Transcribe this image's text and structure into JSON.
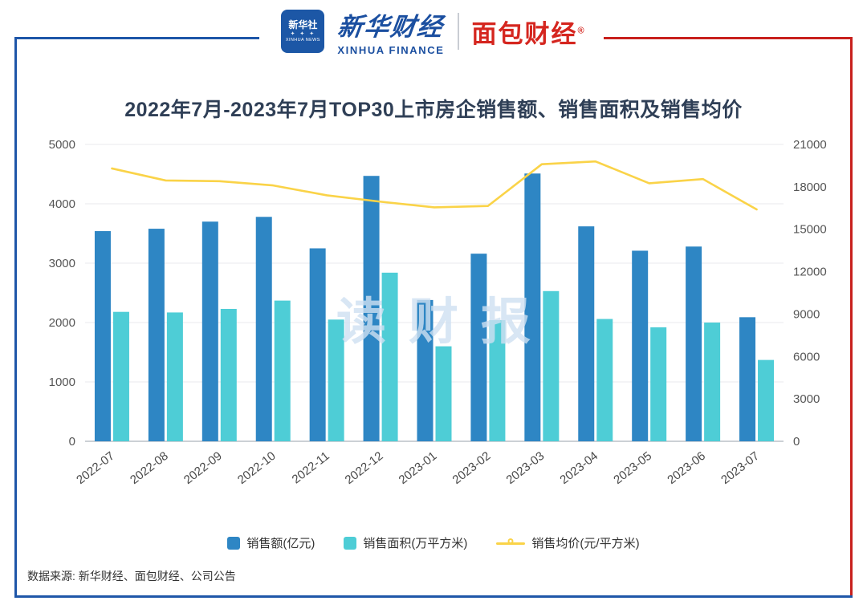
{
  "colors": {
    "frame_blue": "#1E56A8",
    "frame_red": "#C8201D",
    "watermark_blue": "#CFE0F2"
  },
  "header": {
    "xinhua_news": {
      "cn": "新华社",
      "stars": "✦ ✦ ✦",
      "en": "XINHUA NEWS"
    },
    "xinhua_finance": {
      "cn": "新华财经",
      "en": "XINHUA FINANCE"
    },
    "bread_finance": {
      "cn": "面包财经",
      "reg": "®"
    }
  },
  "watermark": "读财报",
  "source": "数据来源: 新华财经、面包财经、公司公告",
  "chart_data": {
    "type": "bar",
    "title": "2022年7月-2023年7月TOP30上市房企销售额、销售面积及销售均价",
    "categories": [
      "2022-07",
      "2022-08",
      "2022-09",
      "2022-10",
      "2022-11",
      "2022-12",
      "2023-01",
      "2023-02",
      "2023-03",
      "2023-04",
      "2023-05",
      "2023-06",
      "2023-07"
    ],
    "series": [
      {
        "name": "销售额(亿元)",
        "type": "bar",
        "axis": "left",
        "color": "#2E86C4",
        "values": [
          3540,
          3580,
          3700,
          3780,
          3250,
          4470,
          2380,
          3160,
          4510,
          3620,
          3210,
          3280,
          2090
        ]
      },
      {
        "name": "销售面积(万平方米)",
        "type": "bar",
        "axis": "left",
        "color": "#4ECDD6",
        "values": [
          2180,
          2170,
          2230,
          2370,
          2050,
          2840,
          1600,
          2040,
          2530,
          2060,
          1920,
          2000,
          1370
        ]
      },
      {
        "name": "销售均价(元/平方米)",
        "type": "line",
        "axis": "right",
        "color": "#FAD348",
        "values": [
          19300,
          18450,
          18400,
          18100,
          17400,
          16950,
          16550,
          16650,
          19600,
          19800,
          18250,
          18550,
          16400
        ]
      }
    ],
    "left_axis": {
      "min": 0,
      "max": 5000,
      "step": 1000,
      "ticks": [
        0,
        1000,
        2000,
        3000,
        4000,
        5000
      ]
    },
    "right_axis": {
      "min": 0,
      "max": 21000,
      "step": 3000,
      "ticks": [
        0,
        3000,
        6000,
        9000,
        12000,
        15000,
        18000,
        21000
      ]
    },
    "grid": true,
    "legend_position": "bottom"
  }
}
